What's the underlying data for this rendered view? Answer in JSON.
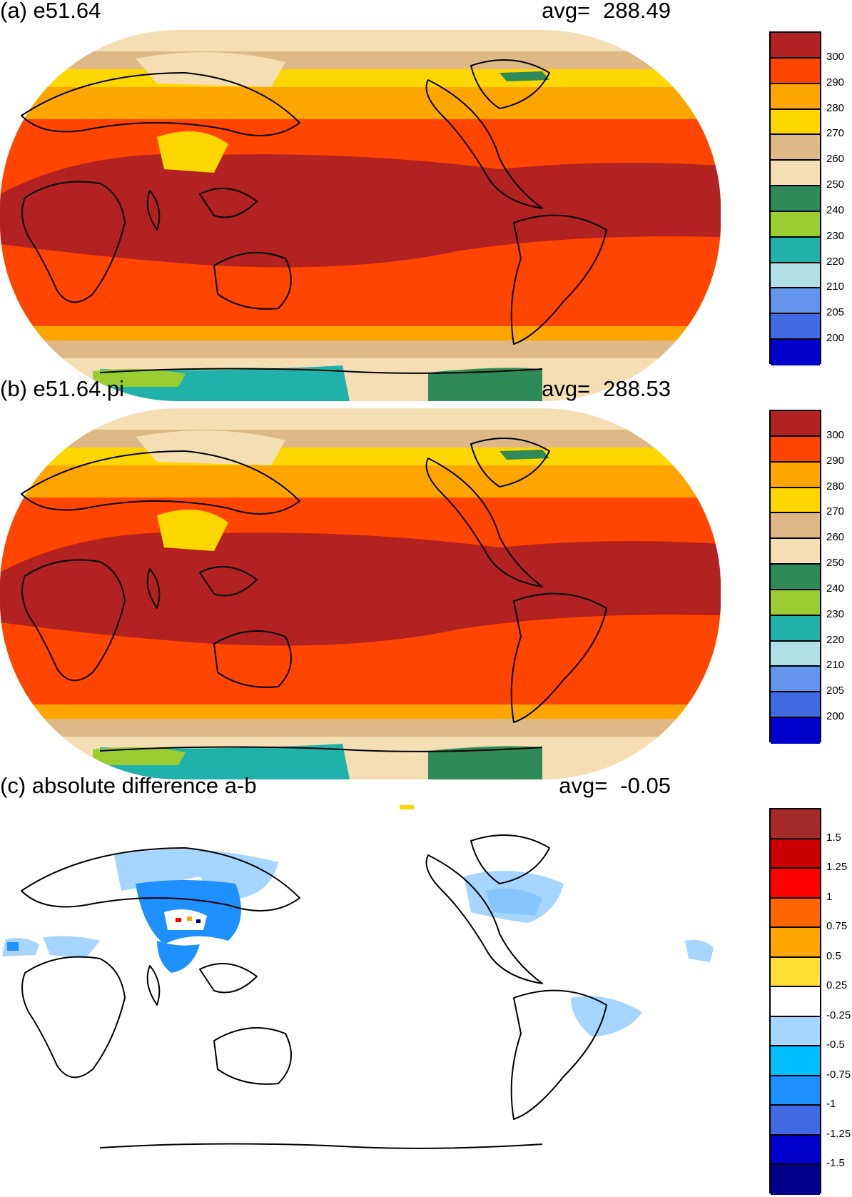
{
  "panels": [
    {
      "title": "(a) e51.64",
      "avg_label": "avg=",
      "avg_value": "288.49",
      "colorbar": {
        "colors": [
          "#b22222",
          "#ff4500",
          "#ffa500",
          "#ffd700",
          "#deb887",
          "#f5deb3",
          "#2e8b57",
          "#9acd32",
          "#20b2aa",
          "#b0e0e6",
          "#6495ed",
          "#4169e1",
          "#0000cd"
        ],
        "labels": [
          "300",
          "290",
          "280",
          "270",
          "260",
          "250",
          "240",
          "230",
          "220",
          "210",
          "205",
          "200"
        ]
      }
    },
    {
      "title": "(b) e51.64.pi",
      "avg_label": "avg=",
      "avg_value": "288.53",
      "colorbar": {
        "colors": [
          "#b22222",
          "#ff4500",
          "#ffa500",
          "#ffd700",
          "#deb887",
          "#f5deb3",
          "#2e8b57",
          "#9acd32",
          "#20b2aa",
          "#b0e0e6",
          "#6495ed",
          "#4169e1",
          "#0000cd"
        ],
        "labels": [
          "300",
          "290",
          "280",
          "270",
          "260",
          "250",
          "240",
          "230",
          "220",
          "210",
          "205",
          "200"
        ]
      }
    },
    {
      "title": "(c) absolute difference a-b",
      "avg_label": "avg=",
      "avg_value": "-0.05",
      "colorbar": {
        "colors": [
          "#a52a2a",
          "#cc0000",
          "#ff0000",
          "#ff6600",
          "#ffa500",
          "#ffe033",
          "#ffffff",
          "#a6d5ff",
          "#00bfff",
          "#1e90ff",
          "#4169e1",
          "#0000cd",
          "#00008b"
        ],
        "labels": [
          "1.5",
          "1.25",
          "1",
          "0.75",
          "0.5",
          "0.25",
          "-0.25",
          "-0.5",
          "-0.75",
          "-1",
          "-1.25",
          "-1.5"
        ]
      }
    }
  ]
}
